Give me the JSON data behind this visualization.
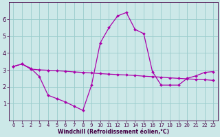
{
  "background_color": "#cce8e8",
  "grid_color": "#99cccc",
  "line_color": "#aa00aa",
  "spine_color": "#440044",
  "xlim": [
    -0.5,
    23.5
  ],
  "ylim": [
    0,
    7
  ],
  "xticks": [
    0,
    1,
    2,
    3,
    4,
    5,
    6,
    7,
    8,
    9,
    10,
    11,
    12,
    13,
    14,
    15,
    16,
    17,
    18,
    19,
    20,
    21,
    22,
    23
  ],
  "yticks": [
    1,
    2,
    3,
    4,
    5,
    6
  ],
  "xlabel": "Windchill (Refroidissement éolien,°C)",
  "line1_x": [
    0,
    1,
    2,
    3,
    4,
    5,
    6,
    7,
    8,
    9,
    10,
    11,
    12,
    13,
    14,
    15,
    16,
    17,
    18,
    19,
    20,
    21,
    22,
    23
  ],
  "line1_y": [
    3.2,
    3.35,
    3.05,
    3.0,
    2.98,
    2.95,
    2.92,
    2.88,
    2.85,
    2.82,
    2.78,
    2.75,
    2.72,
    2.7,
    2.67,
    2.63,
    2.6,
    2.57,
    2.53,
    2.5,
    2.47,
    2.44,
    2.42,
    2.38
  ],
  "line2_x": [
    0,
    1,
    2,
    3,
    4,
    5,
    6,
    7,
    8,
    9,
    10,
    11,
    12,
    13,
    14,
    15,
    16,
    17,
    18,
    19,
    20,
    21,
    22,
    23
  ],
  "line2_y": [
    3.2,
    3.35,
    3.1,
    2.6,
    1.5,
    1.3,
    1.1,
    0.85,
    0.6,
    2.1,
    4.6,
    5.5,
    6.2,
    6.4,
    5.4,
    5.15,
    2.9,
    2.1,
    2.1,
    2.1,
    2.5,
    2.65,
    2.85,
    2.9
  ],
  "tick_fontsize": 5,
  "xlabel_fontsize": 5.5,
  "marker_size": 2.0,
  "line_width": 0.9
}
